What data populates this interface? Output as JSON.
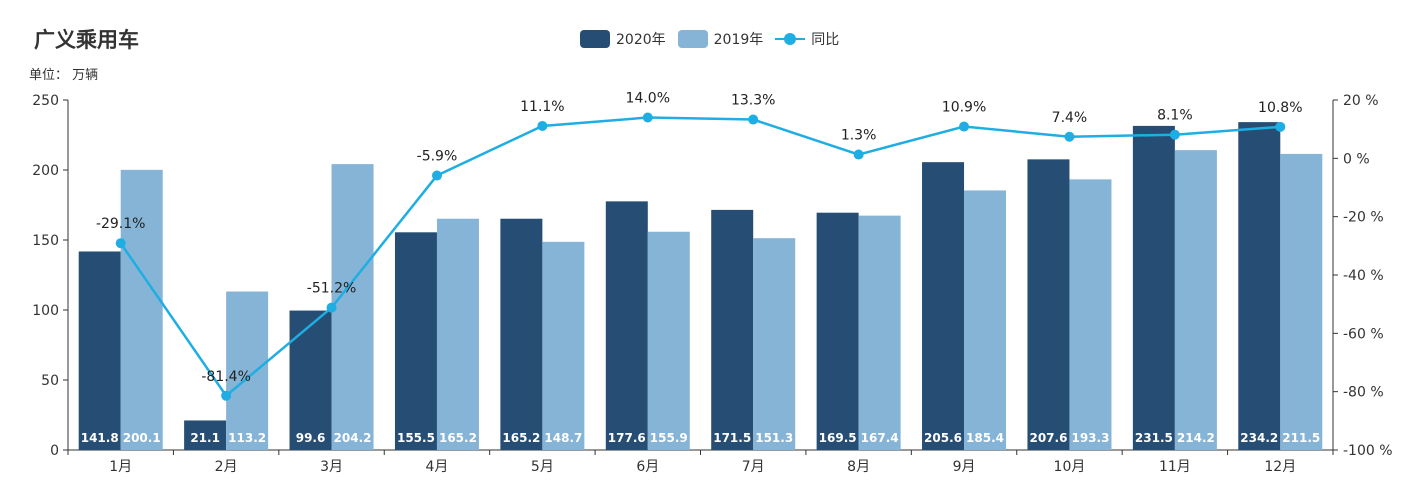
{
  "title": "广义乘用车",
  "subtitle": "单位： 万辆",
  "colors": {
    "series_2020": "#264d73",
    "series_2019": "#85b4d6",
    "yoy_line": "#1eaee3"
  },
  "legend": [
    {
      "name": "2020年",
      "kind": "bar",
      "color": "#264d73"
    },
    {
      "name": "2019年",
      "kind": "bar",
      "color": "#85b4d6"
    },
    {
      "name": "同比",
      "kind": "line",
      "color": "#1eaee3"
    }
  ],
  "chart_data": {
    "type": "bar",
    "categories": [
      "1月",
      "2月",
      "3月",
      "4月",
      "5月",
      "6月",
      "7月",
      "8月",
      "9月",
      "10月",
      "11月",
      "12月"
    ],
    "series": [
      {
        "name": "2020年",
        "type": "bar",
        "axis": "left",
        "values": [
          141.8,
          21.1,
          99.6,
          155.5,
          165.2,
          177.6,
          171.5,
          169.5,
          205.6,
          207.6,
          231.5,
          234.2
        ]
      },
      {
        "name": "2019年",
        "type": "bar",
        "axis": "left",
        "values": [
          200.1,
          113.2,
          204.2,
          165.2,
          148.7,
          155.9,
          151.3,
          167.4,
          185.4,
          193.3,
          214.2,
          211.5
        ]
      },
      {
        "name": "同比",
        "type": "line",
        "axis": "right",
        "values": [
          -29.1,
          -81.4,
          -51.2,
          -5.9,
          11.1,
          14.0,
          13.3,
          1.3,
          10.9,
          7.4,
          8.1,
          10.8
        ],
        "labels": [
          "-29.1%",
          "-81.4%",
          "-51.2%",
          "-5.9%",
          "11.1%",
          "14.0%",
          "13.3%",
          "1.3%",
          "10.9%",
          "7.4%",
          "8.1%",
          "10.8%"
        ]
      }
    ],
    "y_left": {
      "min": 0,
      "max": 250,
      "ticks": [
        0,
        50,
        100,
        150,
        200,
        250
      ]
    },
    "y_right": {
      "min": -100,
      "max": 20,
      "ticks": [
        -100,
        -80,
        -60,
        -40,
        -20,
        0,
        20
      ],
      "tick_labels": [
        "-100 %",
        "-80 %",
        "-60 %",
        "-40 %",
        "-20 %",
        "0 %",
        "20 %"
      ]
    },
    "legend_position": "top-center",
    "grid": false
  }
}
